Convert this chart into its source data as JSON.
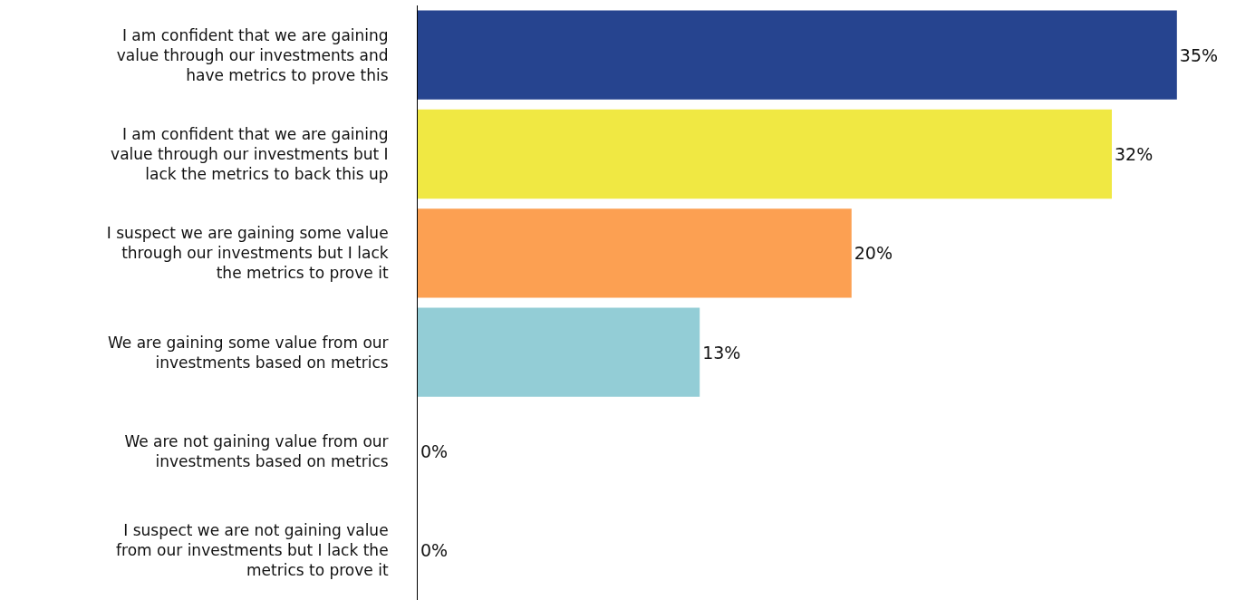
{
  "chart_data": {
    "type": "bar",
    "orientation": "horizontal",
    "categories": [
      "I am confident that we are gaining value through our investments and have metrics to prove this",
      "I am confident that we are gaining value through our investments but I lack the metrics to back this up",
      "I suspect we are gaining some value through our investments but I lack the metrics to prove it",
      "We are gaining some value from our investments based on metrics",
      "We are not gaining value from our investments based on metrics",
      "I suspect we are not gaining value from our investments but I lack the metrics to prove it"
    ],
    "values": [
      35,
      32,
      20,
      13,
      0,
      0
    ],
    "colors": [
      "#26448f",
      "#f0e843",
      "#fca052",
      "#93cdd6",
      "#26448f",
      "#26448f"
    ],
    "value_labels": [
      "35%",
      "32%",
      "20%",
      "13%",
      "0%",
      "0%"
    ],
    "xlim": [
      0,
      38.6
    ],
    "tick_labels": "y"
  }
}
